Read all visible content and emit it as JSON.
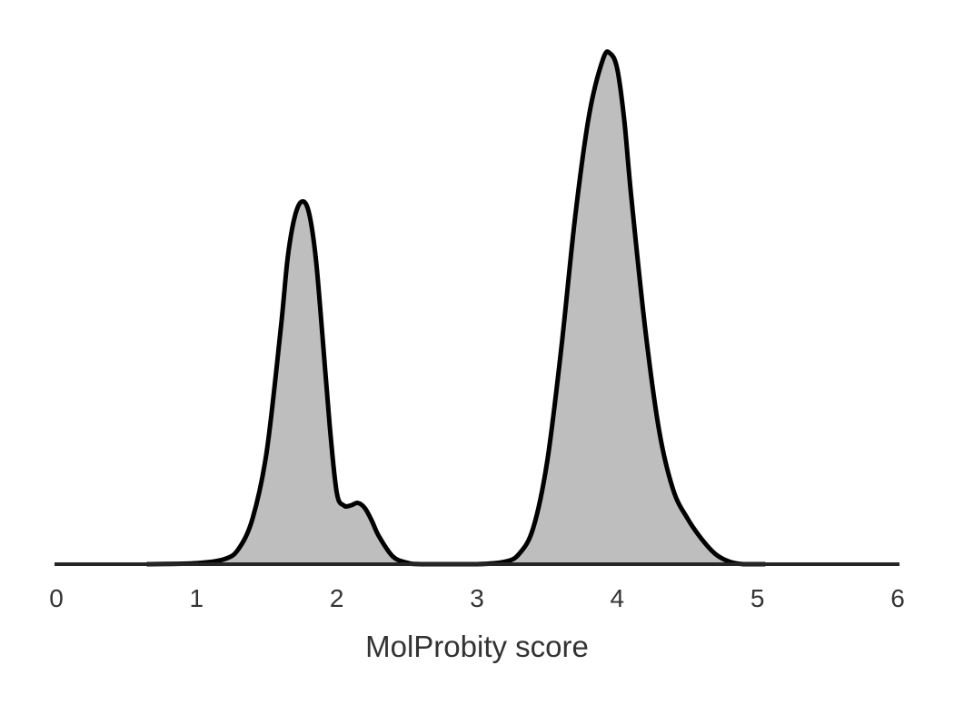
{
  "chart_data": {
    "type": "area",
    "title": "",
    "xlabel": "MolProbity score",
    "ylabel": "",
    "xlim": [
      0,
      6
    ],
    "ylim": [
      0,
      1.03
    ],
    "xticks": [
      0,
      1,
      2,
      3,
      4,
      5,
      6
    ],
    "xtick_labels": [
      "0",
      "1",
      "2",
      "3",
      "4",
      "5",
      "6"
    ],
    "grid": false,
    "legend": "none",
    "series": [
      {
        "fill_color": "#bebebe",
        "line_color": "#000000",
        "x": [
          0.65,
          1.0,
          1.2,
          1.3,
          1.4,
          1.5,
          1.6,
          1.65,
          1.7,
          1.75,
          1.8,
          1.85,
          1.9,
          1.95,
          2.0,
          2.05,
          2.1,
          2.15,
          2.2,
          2.25,
          2.3,
          2.4,
          2.5,
          2.6,
          3.0,
          3.2,
          3.3,
          3.4,
          3.5,
          3.6,
          3.7,
          3.8,
          3.9,
          3.95,
          4.0,
          4.05,
          4.1,
          4.2,
          4.3,
          4.4,
          4.5,
          4.6,
          4.7,
          4.8,
          4.9,
          5.05
        ],
        "y": [
          0.0,
          0.002,
          0.01,
          0.03,
          0.09,
          0.22,
          0.46,
          0.6,
          0.68,
          0.71,
          0.69,
          0.6,
          0.44,
          0.27,
          0.14,
          0.115,
          0.115,
          0.12,
          0.11,
          0.085,
          0.055,
          0.015,
          0.003,
          0.0,
          0.0,
          0.005,
          0.02,
          0.07,
          0.2,
          0.42,
          0.68,
          0.88,
          0.99,
          1.0,
          0.97,
          0.87,
          0.72,
          0.46,
          0.26,
          0.145,
          0.09,
          0.05,
          0.02,
          0.005,
          0.0,
          0.0
        ]
      }
    ]
  }
}
